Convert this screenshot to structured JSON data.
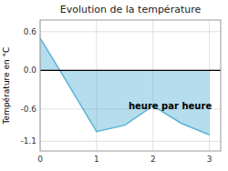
{
  "chart_data": {
    "type": "area",
    "title": "Evolution de la température",
    "ylabel": "Température en °C",
    "annotation": "heure par heure",
    "x": [
      0,
      0.35,
      1.0,
      1.5,
      2.0,
      2.5,
      3.0
    ],
    "values": [
      0.5,
      0.0,
      -0.95,
      -0.85,
      -0.55,
      -0.82,
      -1.0
    ],
    "color": "#5ab4d6",
    "xlim": [
      0,
      3.2
    ],
    "ylim": [
      -1.25,
      0.78
    ],
    "xticks": [
      0,
      1,
      2,
      3
    ],
    "yticks": [
      -1.1,
      -0.6,
      {
        "value": 0.0,
        "label": "0.0"
      },
      0.6
    ],
    "grid": true
  }
}
